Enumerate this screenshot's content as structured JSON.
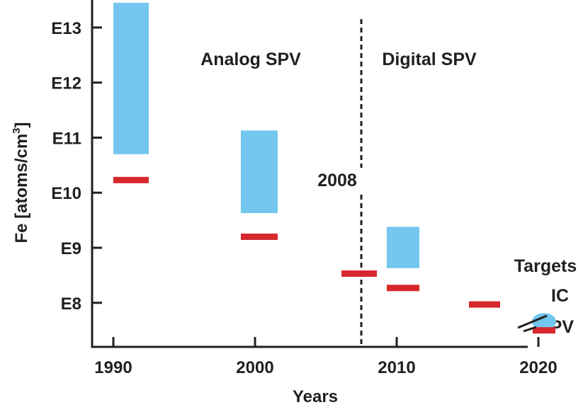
{
  "colors": {
    "ic_bar": "#73c6ee",
    "spv_bar": "#d7282d",
    "axis": "#231f20",
    "divider": "#231f20"
  },
  "chart_data": {
    "type": "range-bar",
    "xlabel": "Years",
    "ylabel": "Fe [atoms/cm",
    "ylabel_superscript": "3",
    "y_scale": "log",
    "x_ticks": [
      1990,
      2000,
      2010,
      2020
    ],
    "x_tick_labels": [
      "1990",
      "2000",
      "2010",
      "2020"
    ],
    "xlim": [
      1988.5,
      2023
    ],
    "y_ticks": [
      8,
      9,
      10,
      11,
      12,
      13
    ],
    "y_tick_labels": [
      "E8",
      "E9",
      "E10",
      "E11",
      "E12",
      "E13"
    ],
    "ylim": [
      7.2,
      13.5
    ],
    "ic_ranges": [
      {
        "x_start": 1990,
        "x_end": 1992.5,
        "low": 10.7,
        "high": 13.45
      },
      {
        "x_start": 1999,
        "x_end": 2001.6,
        "low": 9.63,
        "high": 11.13
      },
      {
        "x_start": 2009.3,
        "x_end": 2011.6,
        "low": 8.63,
        "high": 9.38
      }
    ],
    "spv_levels": [
      {
        "x_start": 1990,
        "x_end": 1992.5,
        "value": 10.23
      },
      {
        "x_start": 1999,
        "x_end": 2001.6,
        "value": 9.2
      },
      {
        "x_start": 2006.1,
        "x_end": 2008.6,
        "value": 8.53
      },
      {
        "x_start": 2009.3,
        "x_end": 2011.6,
        "value": 8.27
      },
      {
        "x_start": 2015.1,
        "x_end": 2017.3,
        "value": 7.97
      }
    ],
    "divider": {
      "x": 2007.5,
      "label": "2008"
    },
    "annotations": [
      {
        "text": "Analog SPV",
        "x": 2000,
        "y": 12.4
      },
      {
        "text": "Digital SPV",
        "x": 2011.7,
        "y": 12.4
      }
    ],
    "targets": {
      "title": "Targets",
      "ic_label": "IC",
      "spv_label": "SPV",
      "ic_value": 7.66,
      "spv_value": 7.5,
      "x_start": 2019.6,
      "x_end": 2021.2,
      "year": 2020
    }
  }
}
